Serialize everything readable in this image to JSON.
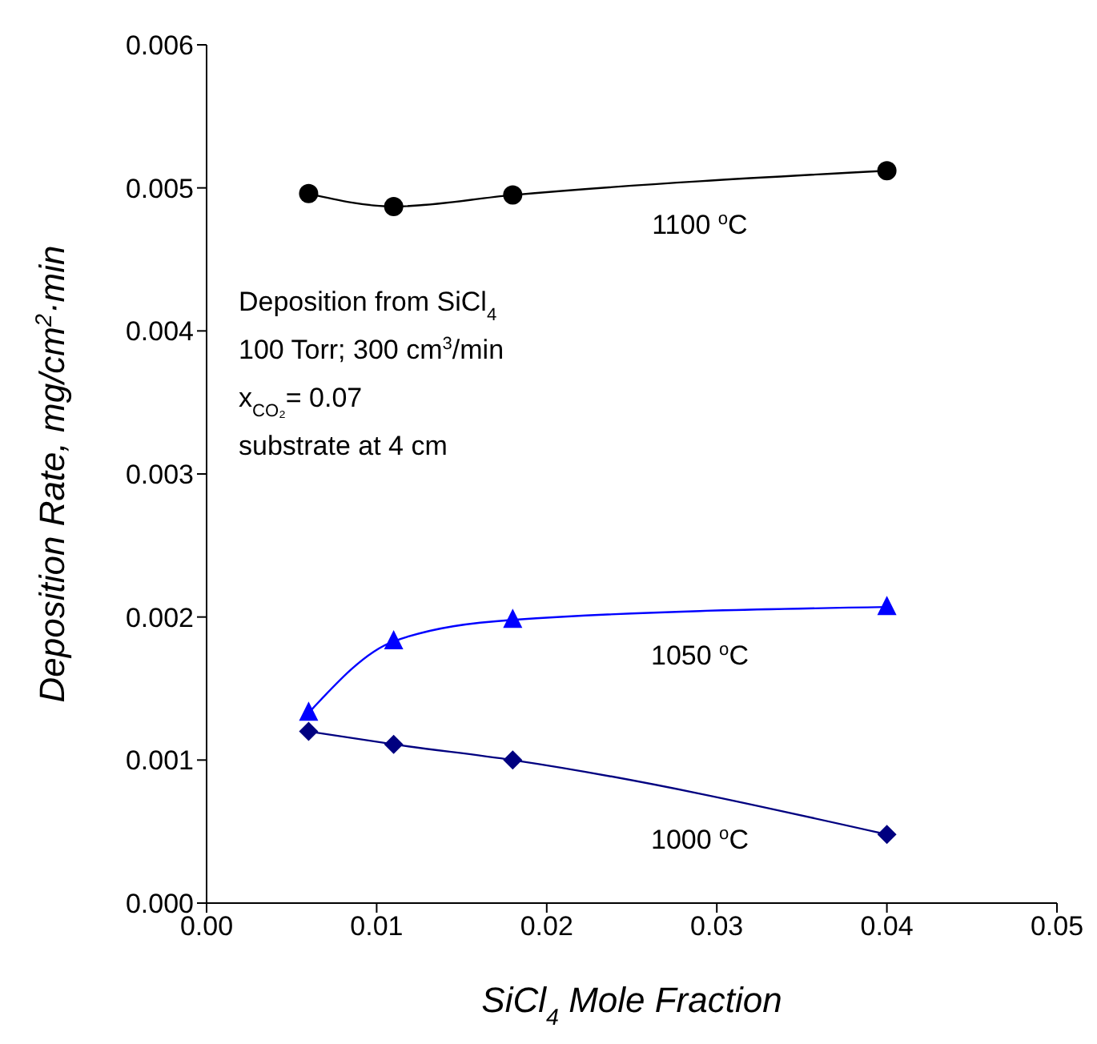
{
  "chart_data": {
    "type": "line",
    "xlabel": "SiCl$_{4}$ Mole Fraction",
    "ylabel": "Deposition Rate, mg/cm$^{2}$·min",
    "annotations": [
      "Deposition from SiCl$_{4}$",
      "100 Torr; 300 cm$^{3}$/min",
      "x$_{CO₂}$= 0.07",
      "substrate at 4 cm"
    ],
    "xlim": [
      0,
      0.05
    ],
    "xticks": [
      {
        "value": 0,
        "label": "0.00"
      },
      {
        "value": 0.01,
        "label": "0.01"
      },
      {
        "value": 0.02,
        "label": "0.02"
      },
      {
        "value": 0.03,
        "label": "0.03"
      },
      {
        "value": 0.04,
        "label": "0.04"
      },
      {
        "value": 0.05,
        "label": "0.05"
      }
    ],
    "ylim": [
      0,
      0.006
    ],
    "yticks": [
      {
        "value": 0,
        "label": "0.000"
      },
      {
        "value": 0.001,
        "label": "0.001"
      },
      {
        "value": 0.002,
        "label": "0.002"
      },
      {
        "value": 0.003,
        "label": "0.003"
      },
      {
        "value": 0.004,
        "label": "0.004"
      },
      {
        "value": 0.005,
        "label": "0.005"
      },
      {
        "value": 0.006,
        "label": "0.006"
      }
    ],
    "line_style": "solid",
    "series": [
      {
        "name": "1100 $^{o}$C",
        "color": "#000000",
        "marker": "circle",
        "x": [
          0.006,
          0.011,
          0.018,
          0.04
        ],
        "values": [
          0.00496,
          0.00487,
          0.00495,
          0.00512
        ]
      },
      {
        "name": "1050 $^{o}$C",
        "color": "#0000ff",
        "marker": "triangle",
        "x": [
          0.006,
          0.011,
          0.018,
          0.04
        ],
        "values": [
          0.00133,
          0.00183,
          0.00198,
          0.00207
        ]
      },
      {
        "name": "1000 $^{o}$C",
        "color": "#000080",
        "marker": "diamond",
        "x": [
          0.006,
          0.011,
          0.018,
          0.04
        ],
        "values": [
          0.0012,
          0.00111,
          0.001,
          0.00048
        ]
      }
    ]
  }
}
